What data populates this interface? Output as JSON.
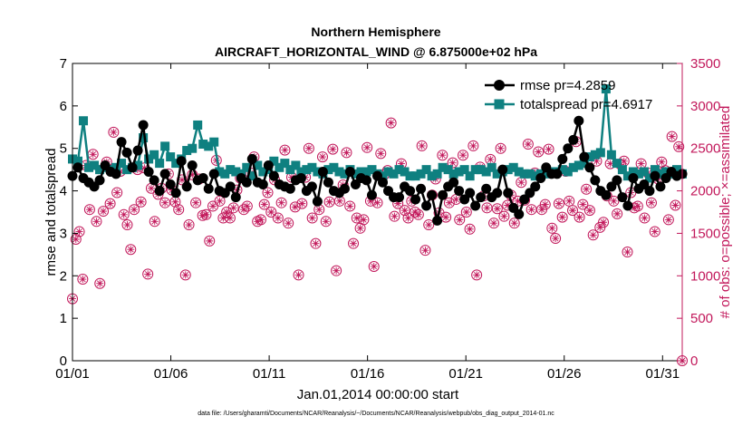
{
  "chart_data": {
    "type": "line",
    "title_line1": "Northern Hemisphere",
    "title_line2": "AIRCRAFT_HORIZONTAL_WIND @ 6.875000e+02 hPa",
    "xlabel": "Jan.01,2014 00:00:00 start",
    "ylabel_left": "rmse and totalspread",
    "ylabel_right": "# of obs: o=possible; ×=assimilated",
    "footer": "data file: /Users/gharamti/Documents/NCAR/Reanalysis/~/Documents/NCAR/Reanalysis/webpub/obs_diag_output_2014-01.nc",
    "xlim": [
      0,
      31
    ],
    "ylim_left": [
      0,
      7
    ],
    "ylim_right": [
      0,
      3500
    ],
    "xticks": [
      0,
      5,
      10,
      15,
      20,
      25,
      30
    ],
    "xtick_labels": [
      "01/01",
      "01/06",
      "01/11",
      "01/16",
      "01/21",
      "01/26",
      "01/31"
    ],
    "yticks_left": [
      "0",
      "1",
      "2",
      "3",
      "4",
      "5",
      "6",
      "7"
    ],
    "yticks_right": [
      "0",
      "500",
      "1000",
      "1500",
      "2000",
      "2500",
      "3000",
      "3500"
    ],
    "colors": {
      "rmse": "#000000",
      "totalspread": "#0f8080",
      "obs": "#c2185b"
    },
    "series": [
      {
        "name": "rmse",
        "legend": "rmse pr=4.2859",
        "values": [
          4.35,
          4.55,
          4.3,
          4.2,
          4.1,
          4.25,
          4.6,
          4.45,
          4.4,
          5.15,
          4.9,
          4.55,
          4.95,
          5.55,
          4.45,
          4.25,
          4.0,
          4.4,
          4.15,
          3.95,
          4.7,
          4.1,
          4.6,
          4.25,
          4.3,
          4.05,
          4.4,
          4.0,
          3.95,
          4.1,
          3.85,
          4.3,
          4.2,
          4.75,
          4.2,
          4.15,
          4.6,
          4.35,
          4.15,
          4.1,
          4.05,
          4.25,
          4.3,
          4.0,
          4.1,
          3.75,
          4.45,
          4.2,
          4.0,
          3.95,
          4.05,
          4.45,
          4.15,
          4.3,
          4.25,
          3.9,
          4.35,
          4.2,
          4.0,
          3.85,
          3.85,
          4.1,
          4.0,
          3.8,
          4.05,
          3.65,
          3.9,
          3.3,
          3.9,
          4.1,
          4.2,
          4.0,
          3.8,
          3.95,
          3.65,
          3.85,
          4.05,
          3.85,
          3.95,
          4.5,
          3.95,
          3.6,
          3.45,
          3.8,
          3.95,
          4.1,
          4.3,
          4.55,
          4.4,
          4.4,
          4.75,
          5.0,
          5.2,
          5.65,
          4.8,
          4.55,
          4.25,
          4.0,
          3.9,
          4.1,
          4.25,
          3.85,
          3.65,
          4.3,
          4.05,
          4.15,
          4.0,
          4.35,
          4.1,
          4.3,
          4.45,
          4.35,
          4.4
        ]
      },
      {
        "name": "totalspread",
        "legend": "totalspread pr=4.6917",
        "values": [
          4.75,
          4.7,
          5.65,
          4.55,
          4.6,
          4.5,
          4.55,
          4.5,
          4.55,
          4.65,
          4.5,
          4.55,
          4.6,
          5.25,
          4.75,
          4.85,
          4.65,
          5.05,
          4.8,
          4.65,
          4.75,
          4.95,
          5.0,
          5.55,
          5.1,
          5.05,
          5.15,
          4.45,
          4.4,
          4.5,
          4.45,
          4.4,
          4.55,
          4.35,
          4.6,
          4.45,
          4.5,
          4.7,
          4.55,
          4.65,
          4.5,
          4.6,
          4.45,
          4.5,
          4.55,
          4.45,
          4.4,
          4.5,
          4.55,
          4.45,
          4.4,
          4.5,
          4.4,
          4.45,
          4.45,
          4.5,
          4.4,
          4.35,
          4.45,
          4.4,
          4.5,
          4.45,
          4.35,
          4.35,
          4.4,
          4.5,
          4.35,
          4.4,
          4.55,
          4.5,
          4.4,
          4.45,
          4.5,
          4.35,
          4.5,
          4.5,
          4.45,
          4.55,
          4.4,
          4.45,
          4.5,
          4.55,
          4.45,
          4.4,
          4.4,
          4.35,
          4.4,
          4.4,
          4.45,
          4.45,
          4.5,
          4.45,
          4.55,
          4.6,
          4.65,
          4.8,
          4.85,
          4.9,
          6.4,
          4.85,
          4.65,
          4.5,
          4.35,
          4.45,
          4.4,
          4.45,
          4.3,
          4.5,
          4.4,
          4.45,
          4.4,
          4.5,
          4.4
        ]
      },
      {
        "name": "obs_possible",
        "values": [
          730,
          1430,
          1520,
          960,
          2300,
          1780,
          2430,
          1640,
          910,
          1760,
          2340,
          1850,
          2690,
          1980,
          2230,
          1720,
          1600,
          1310,
          1780,
          2250,
          1870,
          2270,
          1020,
          2030,
          1640,
          1960,
          2030,
          1860,
          2200,
          2010,
          1870,
          1780,
          2130,
          1010,
          1600,
          2190,
          1860,
          2140,
          1710,
          1720,
          1410,
          1820,
          2360,
          1880,
          1680,
          1750,
          1680,
          1800,
          2010,
          2150,
          1780,
          1820,
          2210,
          2400,
          1640,
          1660,
          1840,
          1980,
          1750,
          2130,
          1680,
          1860,
          2480,
          1620,
          2160,
          1810,
          1010,
          1850,
          2160,
          2500,
          1680,
          1380,
          1780,
          2400,
          1640,
          1870,
          2490,
          1060,
          1880,
          2070,
          2450,
          1820,
          1380,
          1680,
          1560,
          1660,
          2510,
          1880,
          1110,
          1860,
          2440,
          2190,
          2240,
          2800,
          1700,
          1850,
          2320,
          1770,
          1680,
          1880,
          1750,
          1720,
          2530,
          1300,
          1600,
          1950,
          2140,
          1740,
          2420,
          1690,
          1860,
          2330,
          1900,
          1660,
          2420,
          1750,
          1550,
          2530,
          1010,
          2280,
          1940,
          1800,
          2370,
          1620,
          1790,
          2500,
          1700,
          1830,
          1950,
          1620,
          1880,
          2100,
          1890,
          2550,
          1780,
          2210,
          2460,
          1780,
          1840,
          2490,
          1560,
          1440,
          1850,
          1690,
          2230,
          1880,
          1770,
          2580,
          1690,
          1840,
          2020,
          1770,
          1480,
          2350,
          1570,
          1630,
          1940,
          2320,
          1880,
          1730,
          2310,
          2350,
          1280,
          1980,
          1800,
          1820,
          2320,
          1680,
          2210,
          1860,
          1520,
          2140,
          2340,
          2240,
          1660,
          2640,
          1830,
          2520,
          0
        ]
      }
    ]
  }
}
